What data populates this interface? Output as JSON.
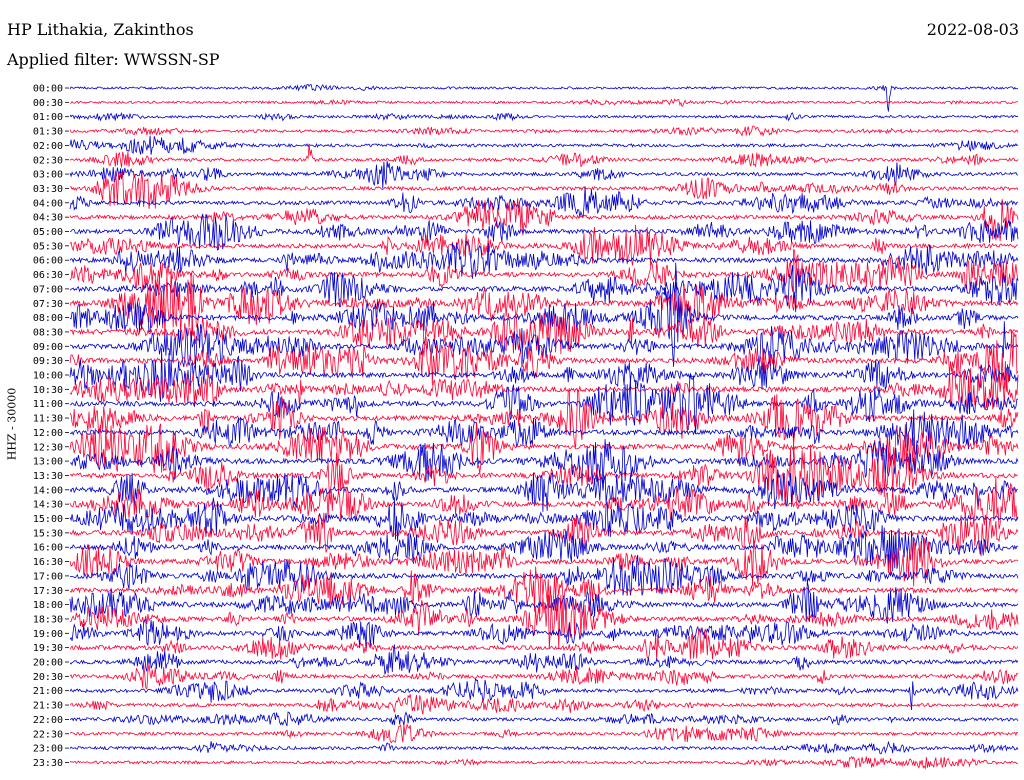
{
  "header": {
    "station": "HP Lithakia, Zakinthos",
    "date": "2022-08-03",
    "filter": "Applied filter: WWSSN-SP"
  },
  "chart_data": {
    "type": "line",
    "title": "HP Lithakia, Zakinthos",
    "ylabel": "HHZ - 30000",
    "y_tick_labels": [
      "00:00",
      "00:30",
      "01:00",
      "01:30",
      "02:00",
      "02:30",
      "03:00",
      "03:30",
      "04:00",
      "04:30",
      "05:00",
      "05:30",
      "06:00",
      "06:30",
      "07:00",
      "07:30",
      "08:00",
      "08:30",
      "09:00",
      "09:30",
      "10:00",
      "10:30",
      "11:00",
      "11:30",
      "12:00",
      "12:30",
      "13:00",
      "13:30",
      "14:00",
      "14:30",
      "15:00",
      "15:30",
      "16:00",
      "16:30",
      "17:00",
      "17:30",
      "18:00",
      "18:30",
      "19:00",
      "19:30",
      "20:00",
      "20:30",
      "21:00",
      "21:30",
      "22:00",
      "22:30",
      "23:00",
      "23:30"
    ],
    "trace_colors": [
      "#0000cc",
      "#ff0033"
    ],
    "x_range_minutes": [
      0,
      30
    ],
    "grid": false,
    "legend": "none",
    "trace_activity": [
      0.1,
      0.12,
      0.18,
      0.22,
      0.3,
      0.35,
      0.42,
      0.5,
      0.58,
      0.62,
      0.68,
      0.72,
      0.78,
      0.8,
      0.84,
      0.86,
      0.88,
      0.88,
      0.9,
      0.9,
      0.92,
      0.92,
      0.92,
      0.92,
      0.94,
      0.94,
      0.94,
      0.92,
      0.92,
      0.9,
      0.9,
      0.88,
      0.88,
      0.86,
      0.84,
      0.84,
      0.82,
      0.78,
      0.74,
      0.68,
      0.62,
      0.55,
      0.48,
      0.42,
      0.38,
      0.34,
      0.3,
      0.26
    ]
  }
}
